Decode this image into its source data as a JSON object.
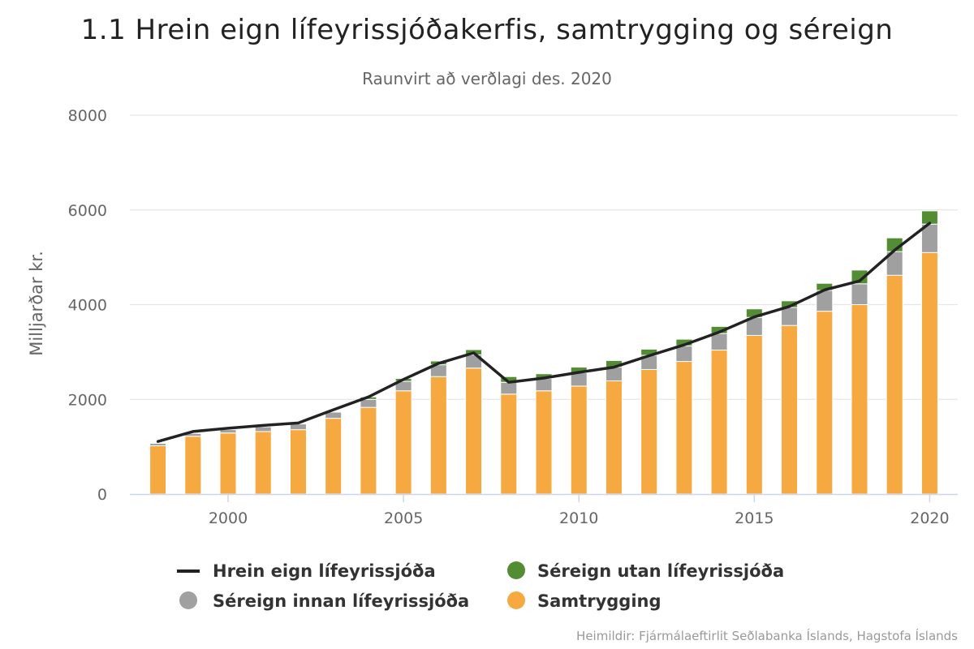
{
  "chart_data": {
    "type": "bar",
    "stacked": true,
    "title": "1.1 Hrein eign lífeyrissjóðakerfis, samtrygging og séreign",
    "subtitle": "Raunvirt að verðlagi des. 2020",
    "ylabel": "Milljarðar kr.",
    "ylim": [
      0,
      8000
    ],
    "yticks": [
      "0",
      "2000",
      "4000",
      "6000",
      "8000"
    ],
    "xlim": [
      1997.2,
      2020.8
    ],
    "xticks": [
      "2000",
      "2005",
      "2010",
      "2015",
      "2020"
    ],
    "grid": true,
    "legend_placement": "bottom",
    "x": [
      1998,
      1999,
      2000,
      2001,
      2002,
      2003,
      2004,
      2005,
      2006,
      2007,
      2008,
      2009,
      2010,
      2011,
      2012,
      2013,
      2014,
      2015,
      2016,
      2017,
      2018,
      2019,
      2020
    ],
    "series": [
      {
        "name": "Samtrygging",
        "kind": "bar",
        "color": "#f7a941",
        "values": [
          1020,
          1220,
          1290,
          1320,
          1360,
          1600,
          1830,
          2180,
          2480,
          2660,
          2110,
          2180,
          2280,
          2390,
          2630,
          2800,
          3040,
          3350,
          3560,
          3860,
          4000,
          4620,
          5100
        ]
      },
      {
        "name": "Séreign innan lífeyrissjóða",
        "kind": "bar",
        "color": "#a0a0a0",
        "values": [
          50,
          60,
          70,
          100,
          120,
          130,
          170,
          200,
          250,
          280,
          250,
          260,
          280,
          290,
          300,
          330,
          350,
          380,
          380,
          440,
          440,
          500,
          600
        ]
      },
      {
        "name": "Séreign utan lífeyrissjóða",
        "kind": "bar",
        "color": "#528d34",
        "values": [
          0,
          0,
          0,
          0,
          0,
          0,
          50,
          60,
          80,
          110,
          120,
          100,
          120,
          140,
          130,
          140,
          150,
          180,
          140,
          150,
          290,
          290,
          280
        ]
      },
      {
        "name": "Hrein eign lífeyrissjóða",
        "kind": "line",
        "color": "#222222",
        "values": [
          1110,
          1320,
          1390,
          1450,
          1500,
          1780,
          2050,
          2420,
          2760,
          2980,
          2360,
          2450,
          2570,
          2680,
          2920,
          3150,
          3420,
          3740,
          3960,
          4310,
          4500,
          5150,
          5720
        ]
      }
    ],
    "credits": "Heimildir: Fjármálaeftirlit Seðlabanka Íslands, Hagstofa Íslands"
  }
}
